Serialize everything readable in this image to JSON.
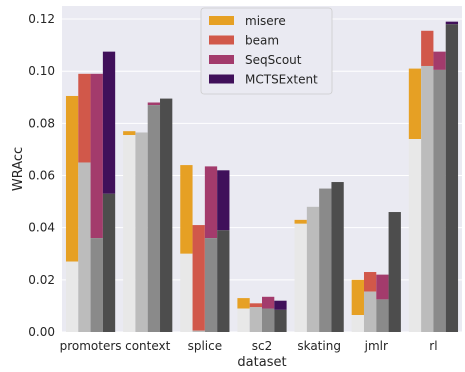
{
  "chart_data": {
    "type": "bar",
    "xlabel": "dataset",
    "ylabel": "WRAcc",
    "ylim": [
      0,
      0.125
    ],
    "yticks": [
      0.0,
      0.02,
      0.04,
      0.06,
      0.08,
      0.1,
      0.12
    ],
    "ytick_labels": [
      "0.00",
      "0.02",
      "0.04",
      "0.06",
      "0.08",
      "0.10",
      "0.12"
    ],
    "grid": true,
    "legend_position": "top-center",
    "categories": [
      "promoters",
      "context",
      "splice",
      "sc2",
      "skating",
      "jmlr",
      "rl"
    ],
    "series": [
      {
        "name": "misere",
        "color": "#e6a024",
        "max": [
          0.0905,
          0.077,
          0.064,
          0.013,
          0.043,
          0.02,
          0.101
        ],
        "min": [
          0.027,
          0.0755,
          0.03,
          0.009,
          0.0415,
          0.0065,
          0.074
        ]
      },
      {
        "name": "beam",
        "color": "#d1584a",
        "max": [
          0.099,
          0.0765,
          0.041,
          0.011,
          0.048,
          0.023,
          0.1155
        ],
        "min": [
          0.065,
          0.0765,
          0.0005,
          0.0095,
          0.048,
          0.0155,
          0.102
        ]
      },
      {
        "name": "SeqScout",
        "color": "#a33b6c",
        "max": [
          0.099,
          0.088,
          0.0635,
          0.0135,
          0.055,
          0.022,
          0.1075
        ],
        "min": [
          0.036,
          0.087,
          0.036,
          0.009,
          0.055,
          0.0125,
          0.1005
        ]
      },
      {
        "name": "MCTSExtent",
        "color": "#40105a",
        "max": [
          0.1075,
          0.0895,
          0.062,
          0.012,
          0.0575,
          0.046,
          0.119
        ],
        "min": [
          0.053,
          0.0895,
          0.039,
          0.0085,
          0.0575,
          0.046,
          0.118
        ]
      }
    ],
    "inner_greys": [
      "#e8e8e8",
      "#bcbcbc",
      "#8a8a8a",
      "#4d4d4d"
    ]
  }
}
